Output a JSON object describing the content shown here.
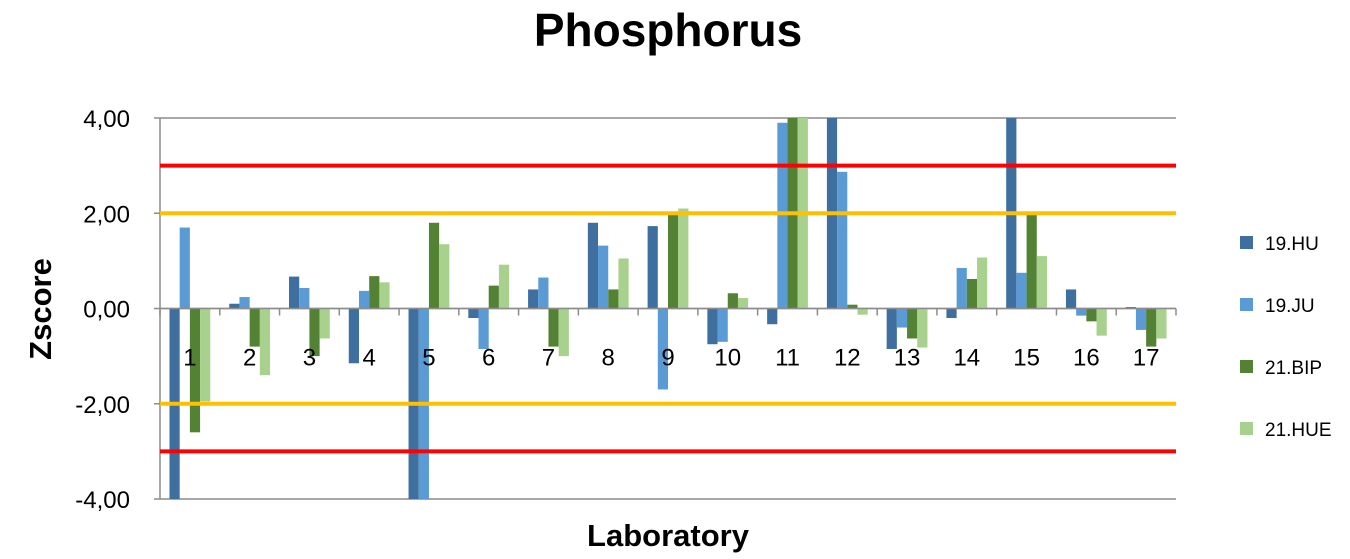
{
  "chart_data": {
    "type": "bar",
    "title": "Phosphorus",
    "xlabel": "Laboratory",
    "ylabel": "Zscore",
    "ylim": [
      -4,
      4
    ],
    "yticks": [
      "4,00",
      "2,00",
      "0,00",
      "-2,00",
      "-4,00"
    ],
    "ytick_values": [
      4,
      2,
      0,
      -2,
      -4
    ],
    "categories": [
      "1",
      "2",
      "3",
      "4",
      "5",
      "6",
      "7",
      "8",
      "9",
      "10",
      "11",
      "12",
      "13",
      "14",
      "15",
      "16",
      "17"
    ],
    "series": [
      {
        "name": "19.HU",
        "color": "#3f6f9f",
        "values": [
          -4.0,
          0.1,
          0.67,
          -1.15,
          -4.0,
          -0.2,
          0.4,
          1.8,
          1.73,
          -0.75,
          -0.33,
          4.0,
          -0.85,
          -0.2,
          4.0,
          0.4,
          0.03
        ]
      },
      {
        "name": "19.JU",
        "color": "#5b9bd5",
        "values": [
          1.7,
          0.24,
          0.43,
          0.37,
          -4.0,
          -0.85,
          0.65,
          1.32,
          -1.7,
          -0.7,
          3.9,
          2.87,
          -0.4,
          0.85,
          0.75,
          -0.15,
          -0.45
        ]
      },
      {
        "name": "21.BIP",
        "color": "#548235",
        "values": [
          -2.6,
          -0.8,
          -1.0,
          0.68,
          1.8,
          0.48,
          -0.8,
          0.4,
          2.0,
          0.32,
          4.0,
          0.08,
          -0.63,
          0.62,
          2.0,
          -0.27,
          -0.8
        ]
      },
      {
        "name": "21.HUE",
        "color": "#a9d18e",
        "values": [
          -1.95,
          -1.4,
          -0.63,
          0.55,
          1.35,
          0.92,
          -1.0,
          1.05,
          2.1,
          0.22,
          4.0,
          -0.13,
          -0.82,
          1.07,
          1.1,
          -0.57,
          -0.63
        ]
      }
    ],
    "reference_lines": [
      {
        "value": 3,
        "color": "#ff0000"
      },
      {
        "value": 2,
        "color": "#ffc000"
      },
      {
        "value": -2,
        "color": "#ffc000"
      },
      {
        "value": -3,
        "color": "#ff0000"
      }
    ],
    "grid": true,
    "legend": "right"
  }
}
